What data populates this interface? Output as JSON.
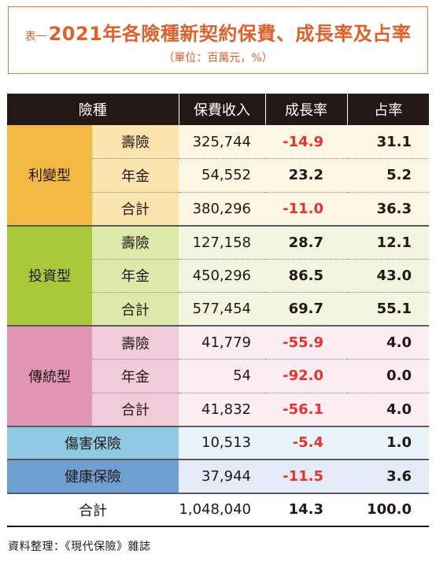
{
  "title": {
    "prefix": "表一",
    "main": "2021年各險種新契約保費、成長率及占率",
    "unit": "（單位：百萬元，%）"
  },
  "table": {
    "headers": [
      "險種",
      "保費收入",
      "成長率",
      "占率"
    ],
    "groups": [
      {
        "name": "利變型",
        "rows": [
          {
            "sub": "壽險",
            "premium": "325,744",
            "growth": "-14.9",
            "share": "31.1"
          },
          {
            "sub": "年金",
            "premium": "54,552",
            "growth": "23.2",
            "share": "5.2"
          },
          {
            "sub": "合計",
            "premium": "380,296",
            "growth": "-11.0",
            "share": "36.3"
          }
        ]
      },
      {
        "name": "投資型",
        "rows": [
          {
            "sub": "壽險",
            "premium": "127,158",
            "growth": "28.7",
            "share": "12.1"
          },
          {
            "sub": "年金",
            "premium": "450,296",
            "growth": "86.5",
            "share": "43.0"
          },
          {
            "sub": "合計",
            "premium": "577,454",
            "growth": "69.7",
            "share": "55.1"
          }
        ]
      },
      {
        "name": "傳統型",
        "rows": [
          {
            "sub": "壽險",
            "premium": "41,779",
            "growth": "-55.9",
            "share": "4.0"
          },
          {
            "sub": "年金",
            "premium": "54",
            "growth": "-92.0",
            "share": "0.0"
          },
          {
            "sub": "合計",
            "premium": "41,832",
            "growth": "-56.1",
            "share": "4.0"
          }
        ]
      }
    ],
    "singles": [
      {
        "name": "傷害保險",
        "premium": "10,513",
        "growth": "-5.4",
        "share": "1.0"
      },
      {
        "name": "健康保險",
        "premium": "37,944",
        "growth": "-11.5",
        "share": "3.6"
      }
    ],
    "total": {
      "name": "合計",
      "premium": "1,048,040",
      "growth": "14.3",
      "share": "100.0"
    }
  },
  "source": "資料整理：《現代保險》雜誌",
  "colors": {
    "title": "#e0602a",
    "negative": "#e8322b",
    "header_bg": "#231815",
    "group1": "#f4b942",
    "group2": "#a9c83a",
    "group3": "#e296b3",
    "accident": "#8ecae2",
    "health": "#6f9fd1"
  }
}
